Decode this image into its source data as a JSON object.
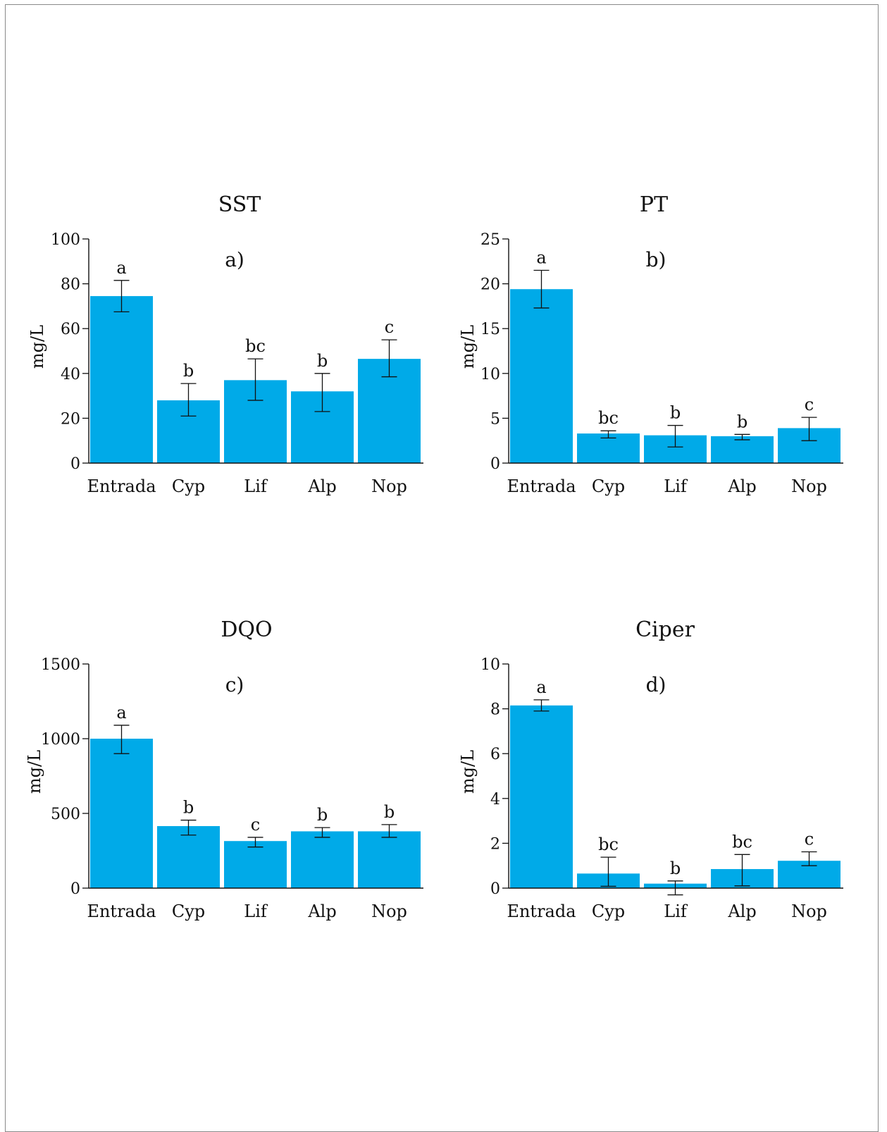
{
  "colors": {
    "bar": "#00aae8",
    "axis": "#111111"
  },
  "chart_data": [
    {
      "type": "bar",
      "title": "SST",
      "panel_label": "a)",
      "ylabel": "mg/L",
      "categories": [
        "Entrada",
        "Cyp",
        "Lif",
        "Alp",
        "Nop"
      ],
      "values": [
        74.5,
        28,
        37,
        32,
        46.5
      ],
      "error": [
        [
          67.5,
          81.5
        ],
        [
          21,
          35.5
        ],
        [
          28,
          46.5
        ],
        [
          23,
          40
        ],
        [
          38.5,
          55
        ]
      ],
      "significance": [
        "a",
        "b",
        "bc",
        "b",
        "c"
      ],
      "ylim": [
        0,
        100
      ],
      "yticks": [
        0,
        20,
        40,
        60,
        80,
        100
      ],
      "ytick_labels": [
        "0",
        "20",
        "40",
        "60",
        "80",
        "100"
      ]
    },
    {
      "type": "bar",
      "title": "PT",
      "panel_label": "b)",
      "ylabel": "mg/L",
      "categories": [
        "Entrada",
        "Cyp",
        "Lif",
        "Alp",
        "Nop"
      ],
      "values": [
        19.4,
        3.3,
        3.1,
        3.0,
        3.9
      ],
      "error": [
        [
          17.3,
          21.5
        ],
        [
          2.8,
          3.6
        ],
        [
          1.8,
          4.2
        ],
        [
          2.6,
          3.2
        ],
        [
          2.5,
          5.1
        ]
      ],
      "significance": [
        "a",
        "bc",
        "b",
        "b",
        "c"
      ],
      "ylim": [
        0,
        25
      ],
      "yticks": [
        0,
        5,
        10,
        15,
        20,
        25
      ],
      "ytick_labels": [
        "0",
        "5",
        "10",
        "15",
        "20",
        "25"
      ]
    },
    {
      "type": "bar",
      "title": "DQO",
      "panel_label": "c)",
      "ylabel": "mg/L",
      "categories": [
        "Entrada",
        "Cyp",
        "Lif",
        "Alp",
        "Nop"
      ],
      "values": [
        1000,
        415,
        315,
        380,
        380
      ],
      "error": [
        [
          900,
          1090
        ],
        [
          355,
          455
        ],
        [
          275,
          340
        ],
        [
          340,
          405
        ],
        [
          340,
          425
        ]
      ],
      "significance": [
        "a",
        "b",
        "c",
        "b",
        "b"
      ],
      "ylim": [
        0,
        1500
      ],
      "yticks": [
        0,
        500,
        1000,
        1500
      ],
      "ytick_labels": [
        "0",
        "500",
        "1000",
        "1500"
      ]
    },
    {
      "type": "bar",
      "title": "Ciper",
      "panel_label": "d)",
      "ylabel": "mg/L",
      "categories": [
        "Entrada",
        "Cyp",
        "Lif",
        "Alp",
        "Nop"
      ],
      "values": [
        8.15,
        0.65,
        0.2,
        0.85,
        1.22
      ],
      "error": [
        [
          7.9,
          8.4
        ],
        [
          0.08,
          1.38
        ],
        [
          -0.3,
          0.32
        ],
        [
          0.1,
          1.5
        ],
        [
          1.0,
          1.62
        ]
      ],
      "significance": [
        "a",
        "bc",
        "b",
        "bc",
        "c"
      ],
      "ylim": [
        0,
        10
      ],
      "yticks": [
        0,
        2,
        4,
        6,
        8,
        10
      ],
      "ytick_labels": [
        "0",
        "2",
        "4",
        "6",
        "8",
        "10"
      ]
    }
  ]
}
